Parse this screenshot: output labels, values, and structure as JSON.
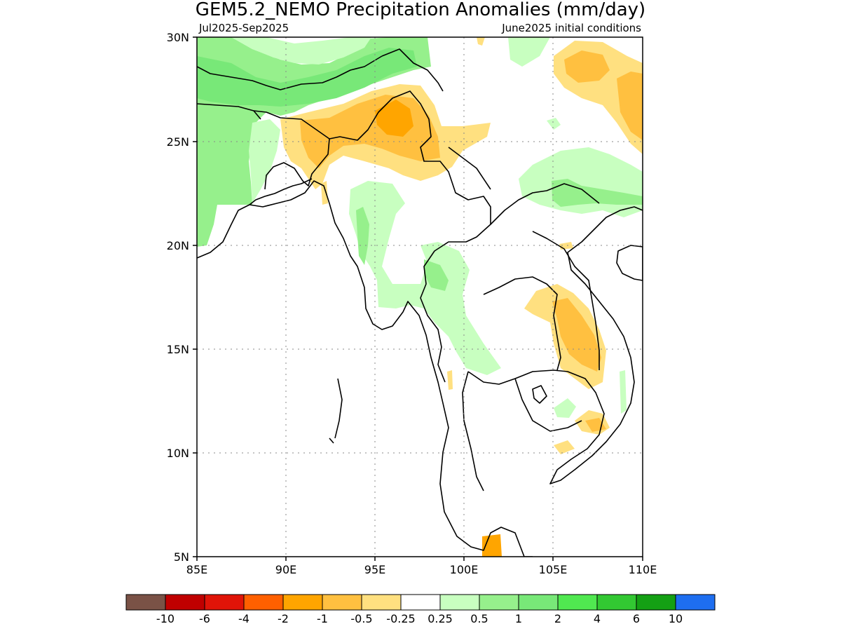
{
  "title": "GEM5.2_NEMO Precipitation Anomalies (mm/day)",
  "subtitle_left": "Jul2025-Sep2025",
  "subtitle_right": "June2025 initial conditions",
  "map": {
    "lon_range": [
      85,
      110
    ],
    "lat_range": [
      5,
      30
    ],
    "x_tick_labels": [
      "85E",
      "90E",
      "95E",
      "100E",
      "105E",
      "110E"
    ],
    "y_tick_labels": [
      "5N",
      "10N",
      "15N",
      "20N",
      "25N",
      "30N"
    ],
    "gridlines": true,
    "colors": {
      "dry_moderate": "#ffa500",
      "dry_light": "#ffc040",
      "dry_weak": "#ffe080",
      "wet_weak": "#c8ffc0",
      "wet_light": "#96f08c",
      "wet_moderate": "#78e878"
    }
  },
  "colorbar": {
    "colors": [
      "#7a5246",
      "#c00000",
      "#e01408",
      "#ff6000",
      "#ffa500",
      "#ffc040",
      "#ffe080",
      "#ffffff",
      "#c8ffc0",
      "#96f08c",
      "#78e878",
      "#50e850",
      "#32c832",
      "#14a014",
      "#1e6ef0"
    ],
    "labels": [
      "-10",
      "-6",
      "-4",
      "-2",
      "-1",
      "-0.5",
      "-0.25",
      "0.25",
      "0.5",
      "1",
      "2",
      "4",
      "6",
      "10"
    ]
  }
}
